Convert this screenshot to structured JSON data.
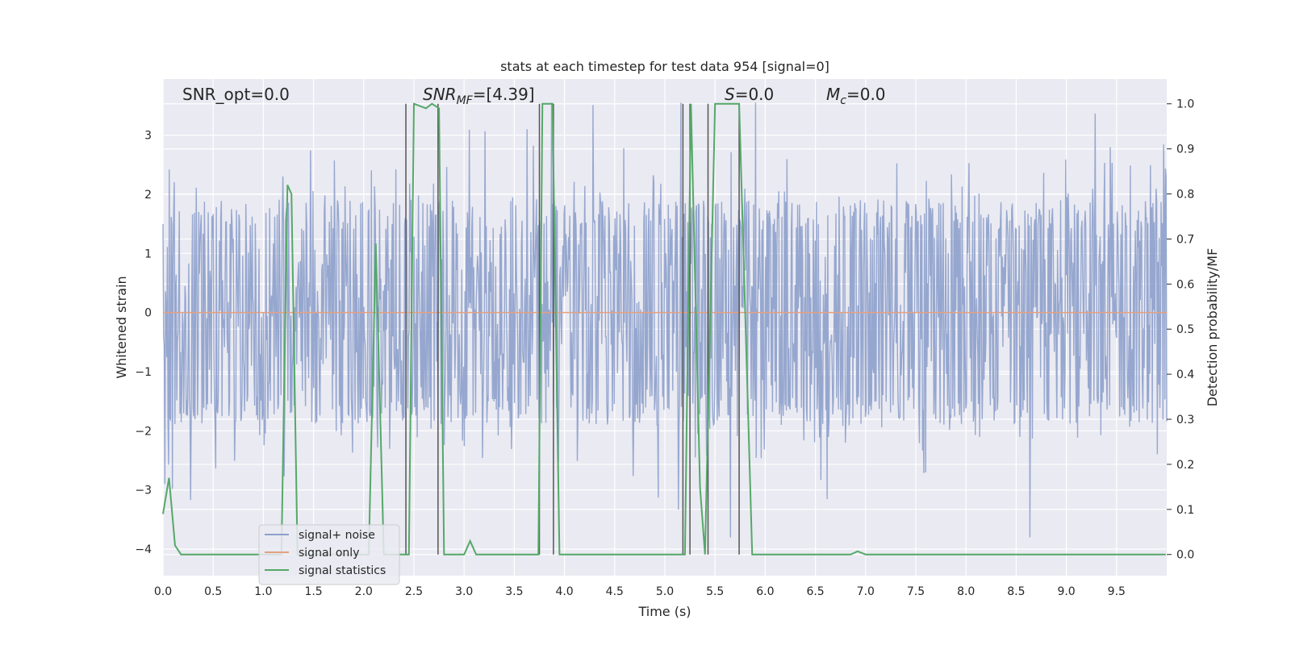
{
  "chart_data": {
    "type": "line",
    "title": "stats at each timestep for test data 954 [signal=0]",
    "xlabel": "Time (s)",
    "ylabel_left": "Whitened strain",
    "ylabel_right": "Detection probability/MF",
    "xlim": [
      0.0,
      10.0
    ],
    "ylim_left": [
      -4.45,
      3.95
    ],
    "ylim_right": [
      -0.047,
      1.055
    ],
    "x_ticks": [
      "0.0",
      "0.5",
      "1.0",
      "1.5",
      "2.0",
      "2.5",
      "3.0",
      "3.5",
      "4.0",
      "4.5",
      "5.0",
      "5.5",
      "6.0",
      "6.5",
      "7.0",
      "7.5",
      "8.0",
      "8.5",
      "9.0",
      "9.5"
    ],
    "x_tick_values": [
      0.0,
      0.5,
      1.0,
      1.5,
      2.0,
      2.5,
      3.0,
      3.5,
      4.0,
      4.5,
      5.0,
      5.5,
      6.0,
      6.5,
      7.0,
      7.5,
      8.0,
      8.5,
      9.0,
      9.5
    ],
    "y_left_ticks": [
      "3",
      "2",
      "1",
      "0",
      "−1",
      "−2",
      "−3",
      "−4"
    ],
    "y_left_tick_values": [
      3,
      2,
      1,
      0,
      -1,
      -2,
      -3,
      -4
    ],
    "y_right_ticks": [
      "1.0",
      "0.9",
      "0.8",
      "0.7",
      "0.6",
      "0.5",
      "0.4",
      "0.3",
      "0.2",
      "0.1",
      "0.0"
    ],
    "y_right_tick_values": [
      1.0,
      0.9,
      0.8,
      0.7,
      0.6,
      0.5,
      0.4,
      0.3,
      0.2,
      0.1,
      0.0
    ],
    "grid": true,
    "legend_placement": "lower-left",
    "annotations": {
      "snr_opt": "SNR_opt=0.0",
      "snr_mf_main": "SNR",
      "snr_mf_sub": "MF",
      "snr_mf_value": "=[4.39]",
      "s_main": "S",
      "s_value": "=0.0",
      "mc_main": "M",
      "mc_sub": "c",
      "mc_value": "=0.0"
    },
    "series": [
      {
        "name": "signal+ noise",
        "axis": "left",
        "color": "#8da0cb",
        "noise": {
          "sigma": 0.9,
          "min": -4.05,
          "max": 3.55,
          "samples": 1600
        }
      },
      {
        "name": "signal only",
        "axis": "left",
        "color": "#e5a07f",
        "x": [
          0.0,
          10.0
        ],
        "y": [
          0.0,
          0.0
        ]
      },
      {
        "name": "signal statistics",
        "axis": "right",
        "color": "#55a868",
        "x": [
          0.0,
          0.06,
          0.12,
          0.18,
          0.9,
          1.18,
          1.24,
          1.28,
          1.34,
          2.05,
          2.12,
          2.2,
          2.45,
          2.5,
          2.62,
          2.68,
          2.75,
          2.8,
          3.0,
          3.06,
          3.12,
          3.74,
          3.78,
          3.88,
          3.95,
          5.2,
          5.26,
          5.35,
          5.4,
          5.5,
          5.74,
          5.87,
          6.85,
          6.92,
          7.0,
          9.99
        ],
        "y": [
          0.09,
          0.17,
          0.02,
          0.0,
          0.0,
          0.0,
          0.82,
          0.8,
          0.0,
          0.0,
          0.69,
          0.0,
          0.0,
          1.0,
          0.99,
          1.0,
          0.99,
          0.0,
          0.0,
          0.03,
          0.0,
          0.0,
          1.0,
          1.0,
          0.0,
          0.0,
          1.0,
          0.15,
          0.0,
          1.0,
          1.0,
          0.0,
          0.0,
          0.007,
          0.0,
          0.0
        ]
      }
    ],
    "vlines": [
      2.42,
      2.74,
      3.75,
      3.89,
      5.18,
      5.25,
      5.43,
      5.74
    ],
    "vline_color": "#555555"
  }
}
